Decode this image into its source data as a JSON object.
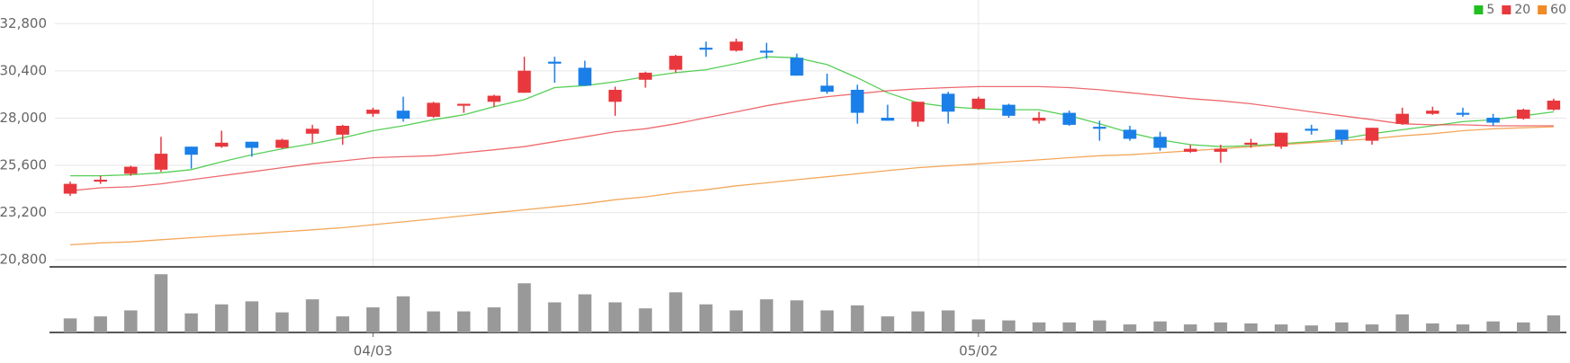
{
  "chart_data": {
    "type": "candlestick",
    "categories": [
      null,
      null,
      null,
      null,
      null,
      null,
      null,
      null,
      null,
      null,
      "04/03",
      null,
      null,
      null,
      null,
      null,
      null,
      null,
      null,
      null,
      null,
      null,
      null,
      null,
      null,
      null,
      null,
      null,
      null,
      null,
      "05/02",
      null,
      null,
      null,
      null,
      null,
      null,
      null,
      null,
      null,
      null,
      null,
      null,
      null,
      null,
      null,
      null,
      null,
      null,
      null
    ],
    "open": [
      24160,
      24770,
      25170,
      25380,
      26550,
      26550,
      26800,
      26490,
      27210,
      27160,
      28220,
      28380,
      28070,
      28630,
      28830,
      29290,
      30870,
      30560,
      28830,
      29950,
      30460,
      31580,
      31430,
      31430,
      31070,
      29650,
      29440,
      28020,
      27820,
      29240,
      28480,
      28680,
      27870,
      28270,
      27560,
      27410,
      27050,
      26290,
      26290,
      26650,
      26550,
      27460,
      27410,
      26850,
      27710,
      28220,
      28270,
      28020,
      27970,
      28430
    ],
    "high": [
      24770,
      25070,
      25580,
      27050,
      26550,
      27360,
      26800,
      26950,
      27660,
      27660,
      28530,
      29090,
      28830,
      28730,
      29190,
      31120,
      31120,
      30920,
      29600,
      30360,
      31220,
      31890,
      32040,
      31830,
      31280,
      30260,
      29700,
      28680,
      28830,
      29340,
      29090,
      28730,
      28320,
      28380,
      27870,
      27610,
      27310,
      26650,
      26650,
      26950,
      27260,
      27660,
      27410,
      27510,
      28530,
      28580,
      28530,
      28220,
      28480,
      28990
    ],
    "low": [
      24050,
      24660,
      25070,
      25270,
      25430,
      26490,
      26040,
      26440,
      26750,
      26650,
      28070,
      27820,
      28020,
      28270,
      28580,
      29290,
      29800,
      29650,
      28120,
      29550,
      30310,
      31120,
      31380,
      31020,
      30160,
      29240,
      27720,
      27870,
      27560,
      27720,
      28430,
      28020,
      27720,
      27610,
      26850,
      26850,
      26340,
      26240,
      25730,
      26490,
      26440,
      27160,
      26650,
      26650,
      27660,
      28170,
      28070,
      27610,
      27920,
      28380
    ],
    "close": [
      24660,
      24870,
      25530,
      26190,
      26140,
      26750,
      26490,
      26900,
      27460,
      27610,
      28430,
      27970,
      28780,
      28730,
      29140,
      30410,
      30770,
      29650,
      29440,
      30310,
      31170,
      31480,
      31890,
      31330,
      30160,
      29340,
      28270,
      27870,
      28830,
      28330,
      28990,
      28120,
      28020,
      27660,
      27460,
      26950,
      26490,
      26440,
      26440,
      26750,
      27260,
      27360,
      26900,
      27510,
      28220,
      28380,
      28170,
      27770,
      28430,
      28890
    ],
    "volume": [
      14,
      16,
      22,
      58,
      19,
      28,
      31,
      20,
      33,
      16,
      25,
      36,
      21,
      21,
      25,
      49,
      30,
      38,
      30,
      24,
      40,
      28,
      22,
      33,
      32,
      22,
      27,
      16,
      21,
      22,
      13,
      12,
      10,
      10,
      12,
      8,
      11,
      8,
      10,
      9,
      8,
      7,
      10,
      8,
      18,
      9,
      8,
      11,
      10,
      17
    ],
    "series": [
      {
        "name": "5",
        "color": "#1fbf1f",
        "values": [
          25070,
          25070,
          25120,
          25220,
          25380,
          25780,
          26140,
          26440,
          26700,
          27000,
          27360,
          27610,
          27920,
          28170,
          28580,
          28940,
          29550,
          29650,
          29850,
          30100,
          30310,
          30460,
          30770,
          31120,
          31070,
          30720,
          30050,
          29290,
          28780,
          28580,
          28480,
          28430,
          28430,
          28120,
          27710,
          27260,
          26900,
          26650,
          26550,
          26600,
          26700,
          26800,
          26950,
          27210,
          27410,
          27610,
          27820,
          27920,
          28120,
          28320
        ]
      },
      {
        "name": "20",
        "color": "#e8383d",
        "values": [
          24310,
          24460,
          24510,
          24660,
          24870,
          25070,
          25270,
          25480,
          25680,
          25830,
          25990,
          26040,
          26090,
          26240,
          26390,
          26550,
          26800,
          27050,
          27310,
          27460,
          27710,
          28020,
          28320,
          28630,
          28880,
          29090,
          29240,
          29390,
          29490,
          29550,
          29600,
          29600,
          29600,
          29550,
          29440,
          29290,
          29140,
          28990,
          28880,
          28730,
          28530,
          28320,
          28120,
          27920,
          27710,
          27660,
          27660,
          27610,
          27610,
          27610
        ]
      },
      {
        "name": "60",
        "color": "#f08a24",
        "values": [
          21560,
          21660,
          21710,
          21820,
          21920,
          22020,
          22120,
          22220,
          22320,
          22430,
          22580,
          22730,
          22880,
          23040,
          23190,
          23340,
          23490,
          23650,
          23850,
          24000,
          24210,
          24360,
          24560,
          24710,
          24870,
          25020,
          25170,
          25330,
          25480,
          25580,
          25680,
          25780,
          25880,
          25990,
          26090,
          26140,
          26240,
          26340,
          26440,
          26550,
          26650,
          26750,
          26850,
          26950,
          27100,
          27210,
          27360,
          27460,
          27510,
          27560
        ]
      }
    ],
    "up_color": "#e8383d",
    "down_color": "#1a7fe8",
    "volume_color": "#999999",
    "ylim": [
      20440,
      33000
    ],
    "yticks": [
      {
        "value": 20800,
        "label": "20,800"
      },
      {
        "value": 23200,
        "label": "23,200"
      },
      {
        "value": 25600,
        "label": "25,600"
      },
      {
        "value": 28000,
        "label": "28,000"
      },
      {
        "value": 30400,
        "label": "30,400"
      },
      {
        "value": 32800,
        "label": "32,800"
      }
    ],
    "volume_ylim": [
      0,
      60
    ],
    "grid": true,
    "legend": "top-right"
  }
}
